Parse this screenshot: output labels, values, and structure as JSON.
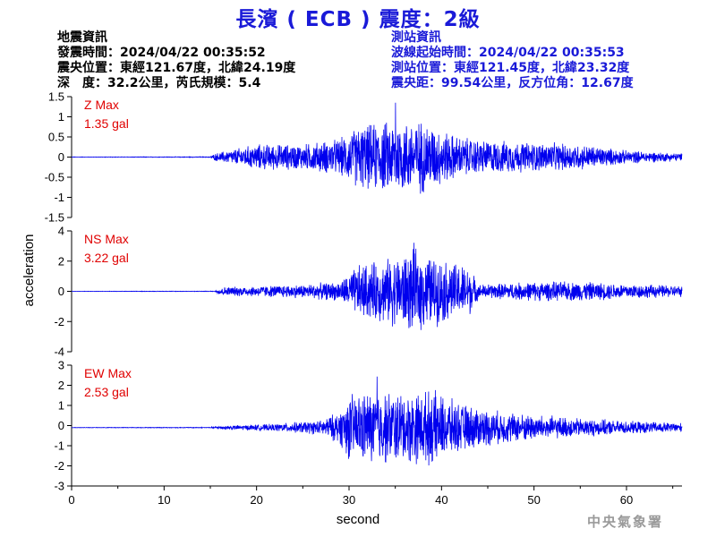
{
  "header": {
    "title": "長濱 ( ECB ) 震度：2級",
    "event_info": [
      "地震資訊",
      "發震時間：2024/04/22 00:35:52",
      "震央位置：東經121.67度，北緯24.19度",
      "深　度：32.2公里，芮氏規模：5.4"
    ],
    "station_info": [
      "測站資訊",
      "波線起始時間：2024/04/22 00:35:53",
      "測站位置：東經121.45度，北緯23.32度",
      "震央距：99.54公里，反方位角：12.67度"
    ]
  },
  "watermark": "中央氣象署",
  "colors": {
    "title": "#1a1ad8",
    "trace": "#0000ee",
    "max_label": "#e00000",
    "axis": "#000000"
  },
  "chart_data": {
    "type": "line",
    "xlabel": "second",
    "ylabel": "acceleration",
    "xlim": [
      0,
      66
    ],
    "xticks": [
      "0",
      "10",
      "20",
      "30",
      "40",
      "50",
      "60"
    ],
    "panels": [
      {
        "name": "Z",
        "max_label": "Z Max",
        "max_value": "1.35 gal",
        "ylim": [
          -1.5,
          1.5
        ],
        "yticks": [
          "1.5",
          "1",
          "0.5",
          "0",
          "-0.5",
          "-1",
          "-1.5"
        ],
        "peak": 1.35,
        "envelope": [
          [
            0,
            0.005
          ],
          [
            15,
            0.01
          ],
          [
            15.5,
            0.1
          ],
          [
            20,
            0.35
          ],
          [
            25,
            0.35
          ],
          [
            29,
            0.5
          ],
          [
            31,
            0.85
          ],
          [
            35,
            1.0
          ],
          [
            38,
            1.0
          ],
          [
            40,
            0.75
          ],
          [
            42,
            0.55
          ],
          [
            45,
            0.45
          ],
          [
            50,
            0.4
          ],
          [
            55,
            0.35
          ],
          [
            60,
            0.18
          ],
          [
            66,
            0.1
          ]
        ],
        "offset": 0
      },
      {
        "name": "NS",
        "max_label": "NS Max",
        "max_value": "3.22 gal",
        "ylim": [
          -4,
          4
        ],
        "yticks": [
          "4",
          "2",
          "0",
          "-2",
          "-4"
        ],
        "peak": 3.22,
        "envelope": [
          [
            0,
            0.01
          ],
          [
            15.5,
            0.02
          ],
          [
            16,
            0.3
          ],
          [
            25,
            0.5
          ],
          [
            29,
            0.7
          ],
          [
            31,
            1.9
          ],
          [
            34,
            2.3
          ],
          [
            37,
            3.0
          ],
          [
            40,
            2.3
          ],
          [
            43,
            1.8
          ],
          [
            44,
            0.5
          ],
          [
            50,
            0.7
          ],
          [
            55,
            0.7
          ],
          [
            60,
            0.55
          ],
          [
            66,
            0.4
          ]
        ],
        "offset": 0
      },
      {
        "name": "EW",
        "max_label": "EW Max",
        "max_value": "2.53 gal",
        "ylim": [
          -3,
          3
        ],
        "yticks": [
          "3",
          "2",
          "1",
          "0",
          "-1",
          "-2",
          "-3"
        ],
        "peak": 2.53,
        "envelope": [
          [
            0,
            0.01
          ],
          [
            15,
            0.02
          ],
          [
            16,
            0.1
          ],
          [
            22,
            0.2
          ],
          [
            27,
            0.4
          ],
          [
            29,
            0.9
          ],
          [
            30,
            1.8
          ],
          [
            33,
            2.0
          ],
          [
            36,
            1.9
          ],
          [
            39,
            2.0
          ],
          [
            42,
            1.3
          ],
          [
            46,
            0.9
          ],
          [
            50,
            0.7
          ],
          [
            55,
            0.5
          ],
          [
            60,
            0.35
          ],
          [
            66,
            0.25
          ]
        ],
        "offset": -0.1
      }
    ]
  }
}
